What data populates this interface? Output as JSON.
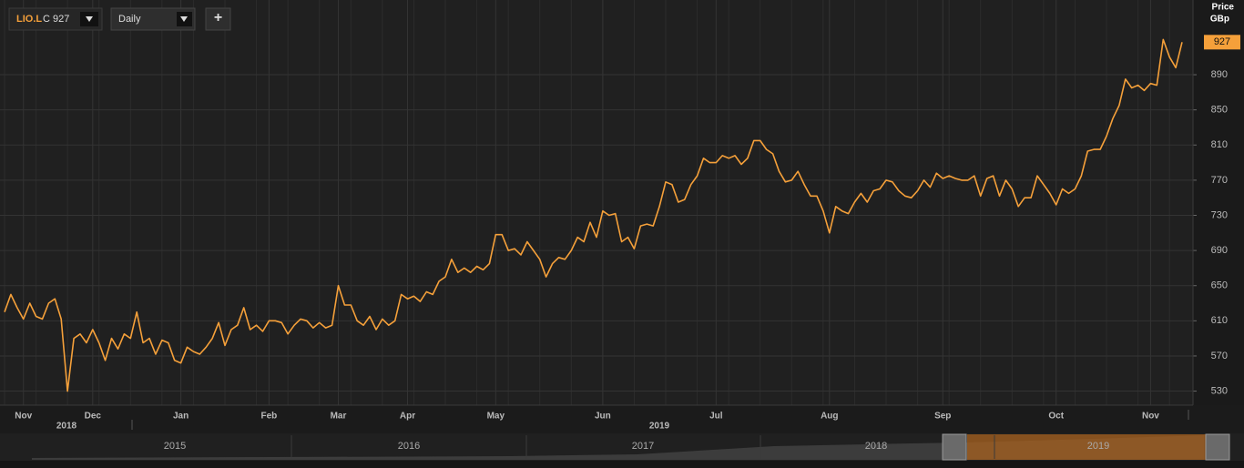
{
  "toolbar": {
    "symbol": "LIO.L",
    "close_label": "C 927",
    "interval": "Daily",
    "add": "+"
  },
  "chart_data": {
    "type": "line",
    "axis_title": "Price",
    "axis_unit": "GBp",
    "categories": [
      null,
      null,
      null,
      "Nov",
      null,
      null,
      null,
      null,
      null,
      null,
      null,
      null,
      null,
      null,
      "Dec",
      null,
      null,
      null,
      null,
      null,
      null,
      null,
      null,
      null,
      null,
      null,
      null,
      null,
      "Jan",
      null,
      null,
      null,
      null,
      null,
      null,
      null,
      null,
      null,
      null,
      null,
      null,
      null,
      "Feb",
      null,
      null,
      null,
      null,
      null,
      null,
      null,
      null,
      null,
      null,
      "Mar",
      null,
      null,
      null,
      null,
      null,
      null,
      null,
      null,
      null,
      null,
      "Apr",
      null,
      null,
      null,
      null,
      null,
      null,
      null,
      null,
      null,
      null,
      null,
      null,
      null,
      "May",
      null,
      null,
      null,
      null,
      null,
      null,
      null,
      null,
      null,
      null,
      null,
      null,
      null,
      null,
      null,
      null,
      "Jun",
      null,
      null,
      null,
      null,
      null,
      null,
      null,
      null,
      null,
      null,
      null,
      null,
      null,
      null,
      null,
      null,
      null,
      "Jul",
      null,
      null,
      null,
      null,
      null,
      null,
      null,
      null,
      null,
      null,
      null,
      null,
      null,
      null,
      null,
      null,
      null,
      "Aug",
      null,
      null,
      null,
      null,
      null,
      null,
      null,
      null,
      null,
      null,
      null,
      null,
      null,
      null,
      null,
      null,
      null,
      "Sep",
      null,
      null,
      null,
      null,
      null,
      null,
      null,
      null,
      null,
      null,
      null,
      null,
      null,
      null,
      null,
      null,
      null,
      "Oct",
      null,
      null,
      null,
      null,
      null,
      null,
      null,
      null,
      null,
      null,
      null,
      null,
      null,
      null,
      "Nov",
      null,
      null,
      null,
      null,
      null
    ],
    "year_labels": [
      "2018",
      "2019"
    ],
    "series": [
      {
        "name": "LIO.L",
        "color": "#f5a03a",
        "values": [
          620,
          640,
          625,
          612,
          630,
          615,
          612,
          630,
          635,
          612,
          530,
          590,
          595,
          585,
          600,
          585,
          565,
          590,
          578,
          595,
          590,
          620,
          585,
          590,
          572,
          588,
          585,
          565,
          562,
          580,
          575,
          572,
          580,
          590,
          608,
          582,
          600,
          605,
          625,
          600,
          605,
          598,
          610,
          610,
          608,
          595,
          605,
          612,
          610,
          602,
          608,
          602,
          605,
          650,
          628,
          628,
          610,
          605,
          615,
          600,
          612,
          605,
          610,
          640,
          635,
          638,
          632,
          643,
          640,
          655,
          660,
          680,
          665,
          670,
          665,
          672,
          668,
          675,
          708,
          708,
          690,
          692,
          685,
          700,
          690,
          680,
          660,
          675,
          682,
          680,
          690,
          705,
          700,
          722,
          705,
          735,
          730,
          732,
          700,
          705,
          692,
          718,
          720,
          718,
          740,
          768,
          765,
          745,
          748,
          765,
          775,
          795,
          790,
          790,
          798,
          795,
          798,
          788,
          795,
          815,
          815,
          805,
          800,
          780,
          768,
          770,
          780,
          765,
          752,
          752,
          735,
          710,
          740,
          735,
          732,
          745,
          755,
          745,
          758,
          760,
          770,
          768,
          758,
          752,
          750,
          758,
          770,
          762,
          778,
          772,
          775,
          772,
          770,
          770,
          775,
          752,
          772,
          775,
          752,
          770,
          760,
          740,
          750,
          750,
          775,
          765,
          755,
          742,
          760,
          755,
          760,
          775,
          803,
          805,
          805,
          820,
          840,
          855,
          885,
          875,
          878,
          872,
          880,
          878,
          930,
          910,
          898,
          927
        ]
      }
    ],
    "ylim": [
      514,
      975
    ],
    "yticks": [
      530,
      570,
      610,
      650,
      690,
      730,
      770,
      810,
      850,
      890
    ],
    "grid": true
  },
  "navigator": {
    "labels": [
      "2015",
      "2016",
      "2017",
      "2018",
      "2019"
    ]
  }
}
